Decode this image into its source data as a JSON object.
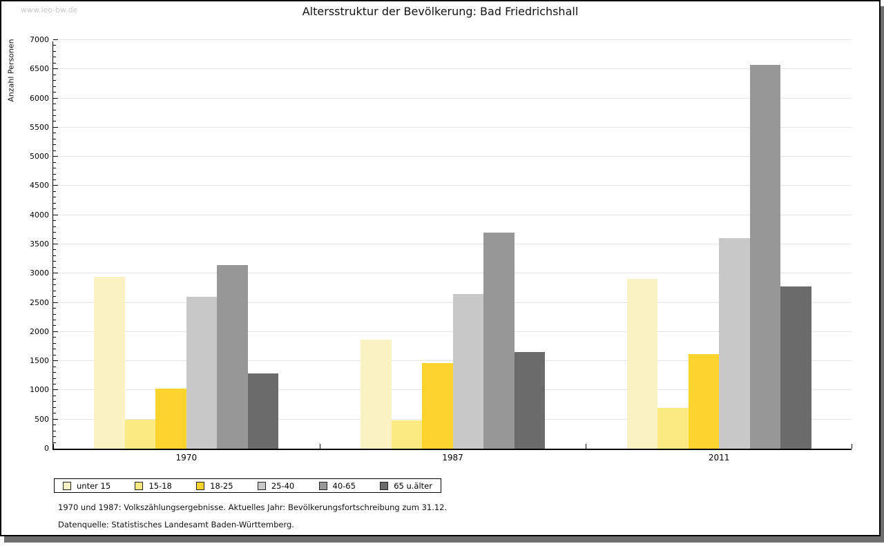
{
  "window": {
    "watermark": "www.leo-bw.de"
  },
  "chart_data": {
    "type": "bar",
    "title": "Altersstruktur der Bevölkerung: Bad Friedrichshall",
    "ylabel": "Anzahl Personen",
    "xlabel": "",
    "categories": [
      "1970",
      "1987",
      "2011"
    ],
    "series": [
      {
        "name": "unter 15",
        "color": "#FBF2C3",
        "values": [
          2950,
          1870,
          2910
        ]
      },
      {
        "name": "15-18",
        "color": "#FBE982",
        "values": [
          500,
          490,
          700
        ]
      },
      {
        "name": "18-25",
        "color": "#FCD42D",
        "values": [
          1030,
          1470,
          1620
        ]
      },
      {
        "name": "25-40",
        "color": "#C8C8C8",
        "values": [
          2600,
          2650,
          3610
        ]
      },
      {
        "name": "40-65",
        "color": "#979797",
        "values": [
          3150,
          3700,
          6570
        ]
      },
      {
        "name": "65 u.älter",
        "color": "#6B6B6B",
        "values": [
          1290,
          1660,
          2780
        ]
      }
    ],
    "ylim": [
      0,
      7000
    ],
    "ytick_step": 500,
    "minor_tick_step": 100,
    "grid": "horizontal-major",
    "legend_position": "bottom-left"
  },
  "footer": {
    "line1": "1970 und 1987: Volkszählungsergebnisse. Aktuelles Jahr: Bevölkerungsfortschreibung zum 31.12.",
    "line2": "Datenquelle: Statistisches Landesamt Baden-Württemberg."
  }
}
